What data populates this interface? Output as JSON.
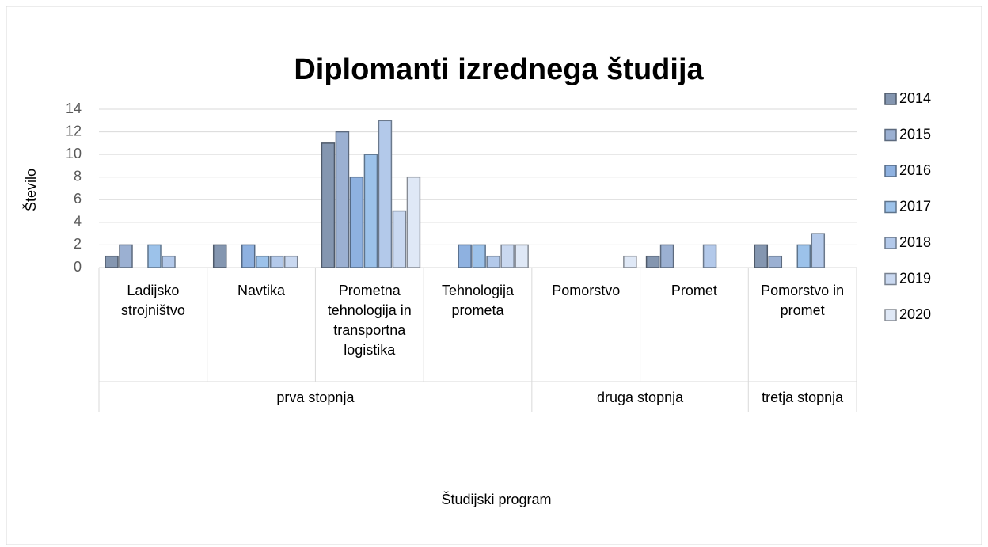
{
  "chart_data": {
    "type": "bar",
    "title": "Diplomanti izrednega študija",
    "y_label": "Število",
    "x_label": "Študijski program",
    "category_groups": [
      {
        "name": "prva stopnja",
        "categories": [
          "Ladijsko strojništvo",
          "Navtika",
          "Prometna tehnologija in transportna logistika",
          "Tehnologija prometa"
        ]
      },
      {
        "name": "druga stopnja",
        "categories": [
          "Pomorstvo",
          "Promet"
        ]
      },
      {
        "name": "tretja stopnja",
        "categories": [
          "Pomorstvo in promet"
        ]
      }
    ],
    "series": [
      {
        "name": "2014",
        "color": "#8496b0",
        "values": [
          1,
          2,
          11,
          null,
          null,
          1,
          2
        ]
      },
      {
        "name": "2015",
        "color": "#9bb0d2",
        "values": [
          2,
          null,
          12,
          null,
          null,
          2,
          1
        ]
      },
      {
        "name": "2016",
        "color": "#8eb1e0",
        "values": [
          null,
          2,
          8,
          2,
          null,
          null,
          null
        ]
      },
      {
        "name": "2017",
        "color": "#9cc2ea",
        "values": [
          2,
          1,
          10,
          2,
          null,
          null,
          2
        ]
      },
      {
        "name": "2018",
        "color": "#b3c9ea",
        "values": [
          1,
          1,
          13,
          1,
          null,
          2,
          3
        ]
      },
      {
        "name": "2019",
        "color": "#c9d8f0",
        "values": [
          null,
          1,
          5,
          2,
          null,
          null,
          null
        ]
      },
      {
        "name": "2020",
        "color": "#dfe8f6",
        "values": [
          null,
          null,
          8,
          2,
          1,
          null,
          null
        ]
      }
    ],
    "ylim": [
      0,
      14
    ],
    "yticks": [
      0,
      2,
      4,
      6,
      8,
      10,
      12,
      14
    ],
    "grid": true,
    "legend": "right"
  }
}
